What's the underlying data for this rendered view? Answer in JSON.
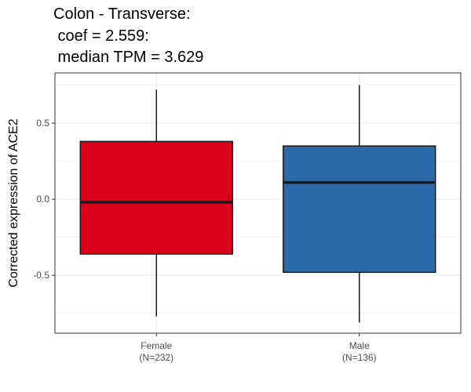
{
  "chart_data": {
    "type": "box",
    "title_lines": [
      "Colon - Transverse:",
      " coef = 2.559:",
      " median TPM = 3.629"
    ],
    "ylabel": "Corrected expression of ACE2",
    "xlabel": "",
    "ylim": [
      -0.88,
      0.83
    ],
    "yticks": [
      -0.5,
      0.0,
      0.5
    ],
    "ytick_labels": [
      "-0.5",
      "0.0",
      "0.5"
    ],
    "grid": true,
    "categories": [
      "Female",
      "Male"
    ],
    "category_counts": [
      "(N=232)",
      "(N=136)"
    ],
    "boxes": [
      {
        "category": "Female",
        "whisker_low": -0.77,
        "q1": -0.36,
        "median": -0.02,
        "q3": 0.38,
        "whisker_high": 0.72,
        "color": "#dc001b"
      },
      {
        "category": "Male",
        "whisker_low": -0.81,
        "q1": -0.48,
        "median": 0.11,
        "q3": 0.35,
        "whisker_high": 0.75,
        "color": "#2d6aa9"
      }
    ],
    "colors": {
      "panel_border": "#333333",
      "grid": "#ebebeb",
      "box_outline": "#1a1a1a"
    }
  }
}
